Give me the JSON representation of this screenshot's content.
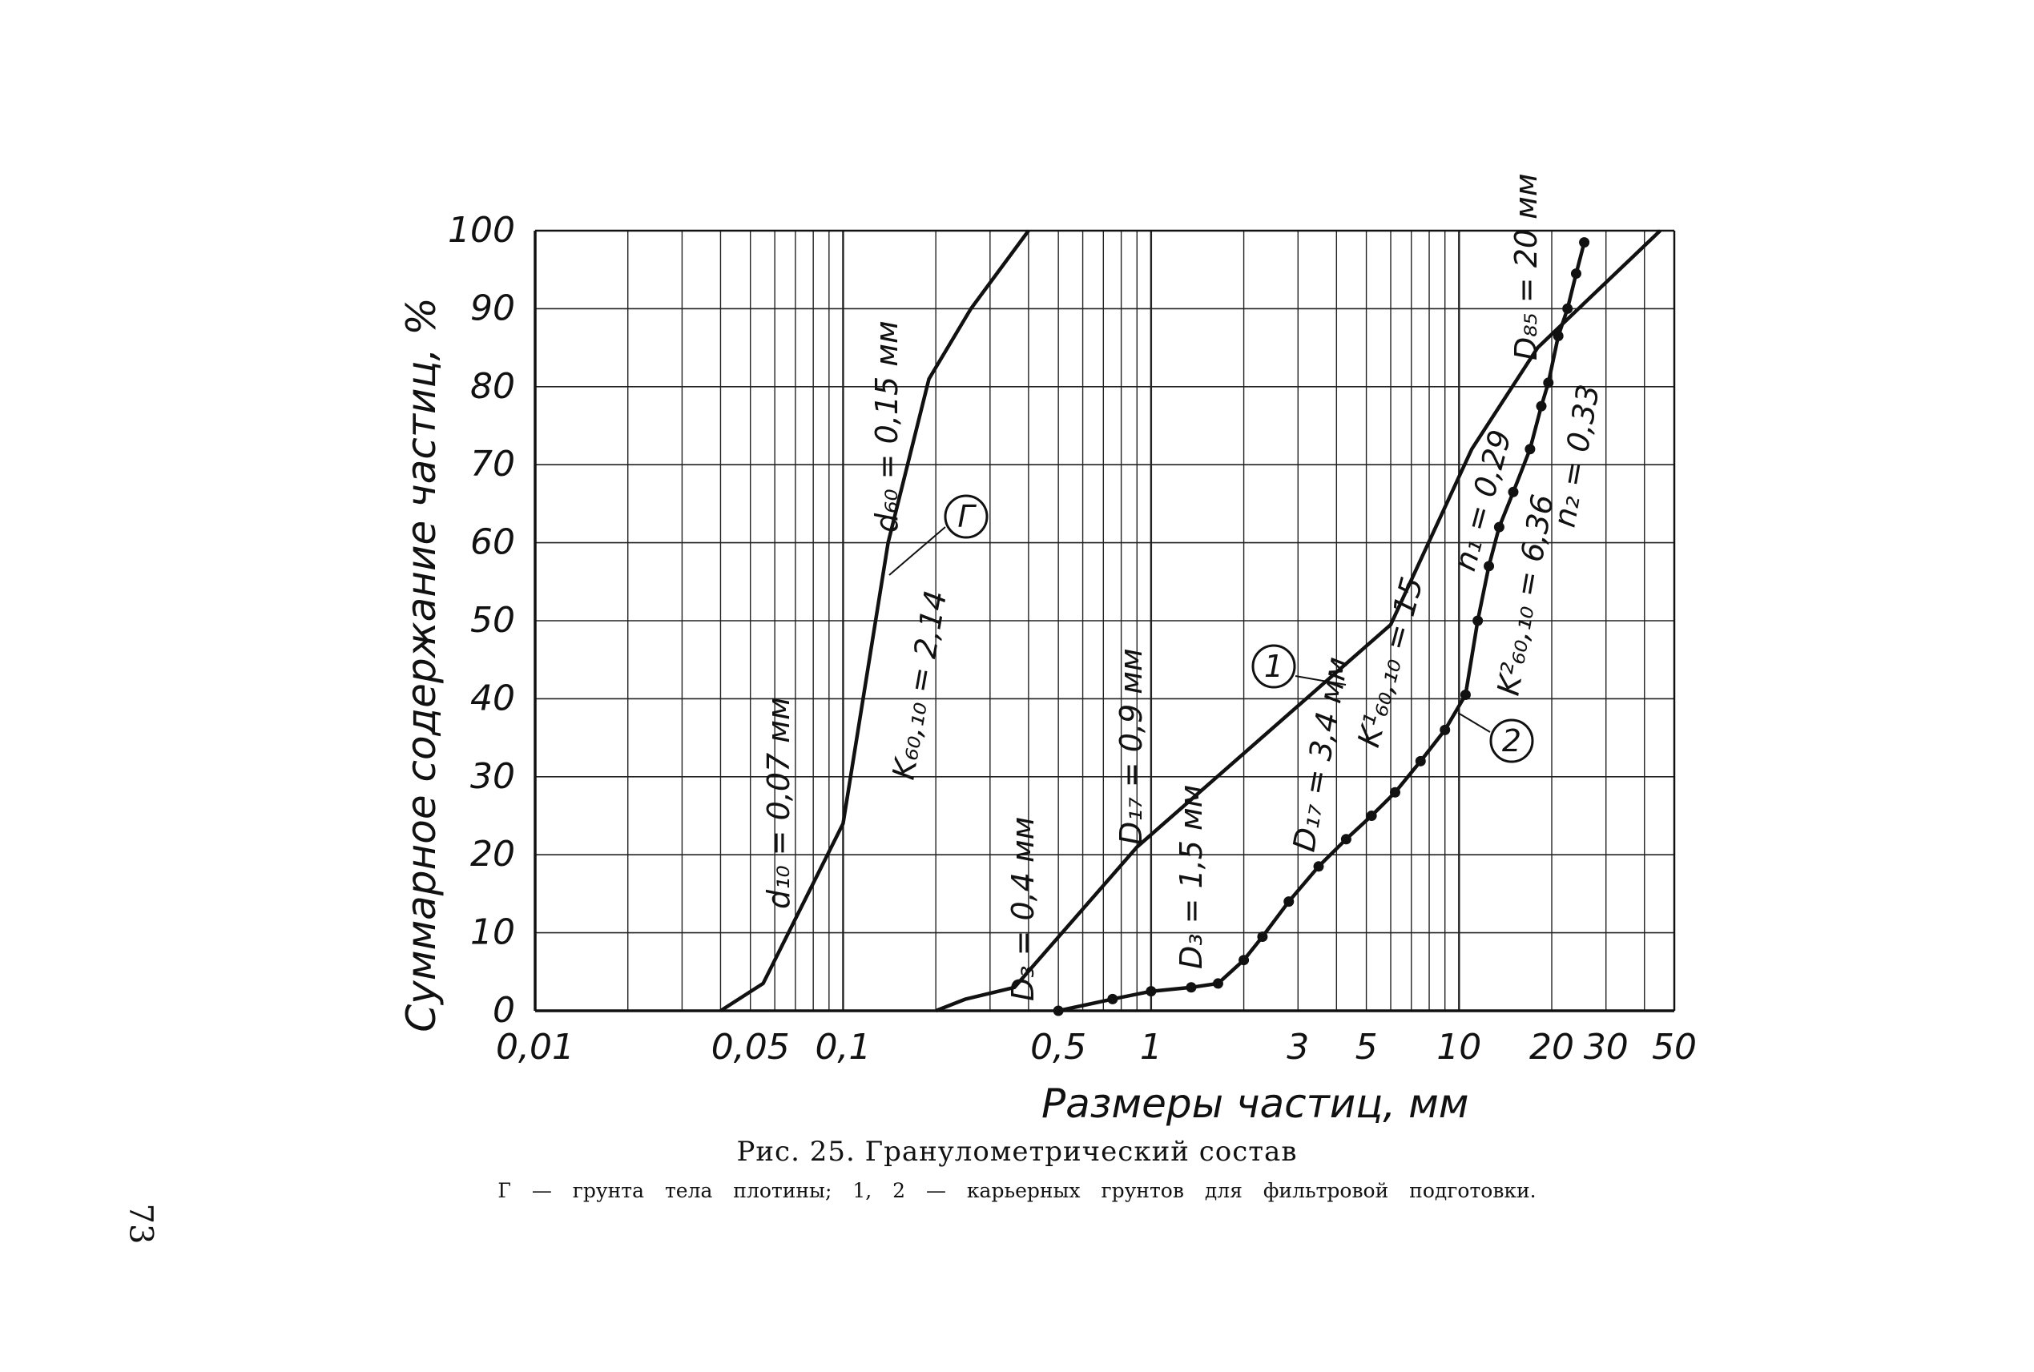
{
  "page": {
    "number": "73"
  },
  "caption": {
    "title": "Рис. 25. Гранулометрический состав",
    "subtitle": "Г — грунта тела плотины; 1, 2 — карьерных грунтов для фильтровой подготовки."
  },
  "chart_data": {
    "type": "line",
    "xscale": "log",
    "xlabel": "Размеры частиц, мм",
    "ylabel": "Суммарное содержание частиц, %",
    "xlim": [
      0.01,
      50
    ],
    "ylim": [
      0,
      100
    ],
    "grid": true,
    "x_ticks": [
      {
        "v": 0.01,
        "label": "0,01"
      },
      {
        "v": 0.05,
        "label": "0,05"
      },
      {
        "v": 0.1,
        "label": "0,1"
      },
      {
        "v": 0.5,
        "label": "0,5"
      },
      {
        "v": 1,
        "label": "1"
      },
      {
        "v": 3,
        "label": "3"
      },
      {
        "v": 5,
        "label": "5"
      },
      {
        "v": 10,
        "label": "10"
      },
      {
        "v": 20,
        "label": "20"
      },
      {
        "v": 30,
        "label": "30"
      },
      {
        "v": 50,
        "label": "50"
      }
    ],
    "y_ticks": [
      0,
      10,
      20,
      30,
      40,
      50,
      60,
      70,
      80,
      90,
      100
    ],
    "series": [
      {
        "name": "Г",
        "points": [
          [
            0.04,
            0
          ],
          [
            0.055,
            3.5
          ],
          [
            0.1,
            24
          ],
          [
            0.14,
            60
          ],
          [
            0.19,
            81
          ],
          [
            0.26,
            90
          ],
          [
            0.4,
            100
          ]
        ]
      },
      {
        "name": "1",
        "points": [
          [
            0.2,
            0
          ],
          [
            0.25,
            1.5
          ],
          [
            0.36,
            3
          ],
          [
            0.9,
            21
          ],
          [
            6,
            49.5
          ],
          [
            11,
            72
          ],
          [
            18,
            85
          ],
          [
            45,
            100
          ]
        ]
      },
      {
        "name": "2",
        "markers": true,
        "points": [
          [
            0.5,
            0
          ],
          [
            0.75,
            1.5
          ],
          [
            1.0,
            2.5
          ],
          [
            1.35,
            3.0
          ],
          [
            1.65,
            3.5
          ],
          [
            2.0,
            6.5
          ],
          [
            2.3,
            9.5
          ],
          [
            2.8,
            14
          ],
          [
            3.5,
            18.5
          ],
          [
            4.3,
            22
          ],
          [
            5.2,
            25
          ],
          [
            6.2,
            28
          ],
          [
            7.5,
            32
          ],
          [
            9.0,
            36
          ],
          [
            10.5,
            40.5
          ],
          [
            11.5,
            50
          ],
          [
            12.5,
            57
          ],
          [
            13.5,
            62
          ],
          [
            15.0,
            66.5
          ],
          [
            17.0,
            72
          ],
          [
            18.5,
            77.5
          ],
          [
            19.5,
            80.5
          ],
          [
            21.0,
            86.5
          ],
          [
            22.5,
            90
          ],
          [
            24.0,
            94.5
          ],
          [
            25.5,
            98.5
          ]
        ]
      }
    ],
    "annotations": [
      {
        "text": "d₁₀ = 0,07 мм"
      },
      {
        "text": "d₆₀ = 0,15 мм"
      },
      {
        "text": "K₆₀,₁₀ = 2,14"
      },
      {
        "text": "Г"
      },
      {
        "text": "D₃ = 0,4 мм"
      },
      {
        "text": "D₁₇ = 0,9 мм"
      },
      {
        "text": "D₃ = 1,5 мм"
      },
      {
        "text": "D₁₇ = 3,4 мм"
      },
      {
        "text": "1"
      },
      {
        "text": "K¹₆₀,₁₀ = 15"
      },
      {
        "text": "n₁ = 0,29"
      },
      {
        "text": "2"
      },
      {
        "text": "K²₆₀,₁₀ = 6,36"
      },
      {
        "text": "n₂ = 0,33"
      },
      {
        "text": "D₈₅ = 20 мм"
      }
    ]
  }
}
